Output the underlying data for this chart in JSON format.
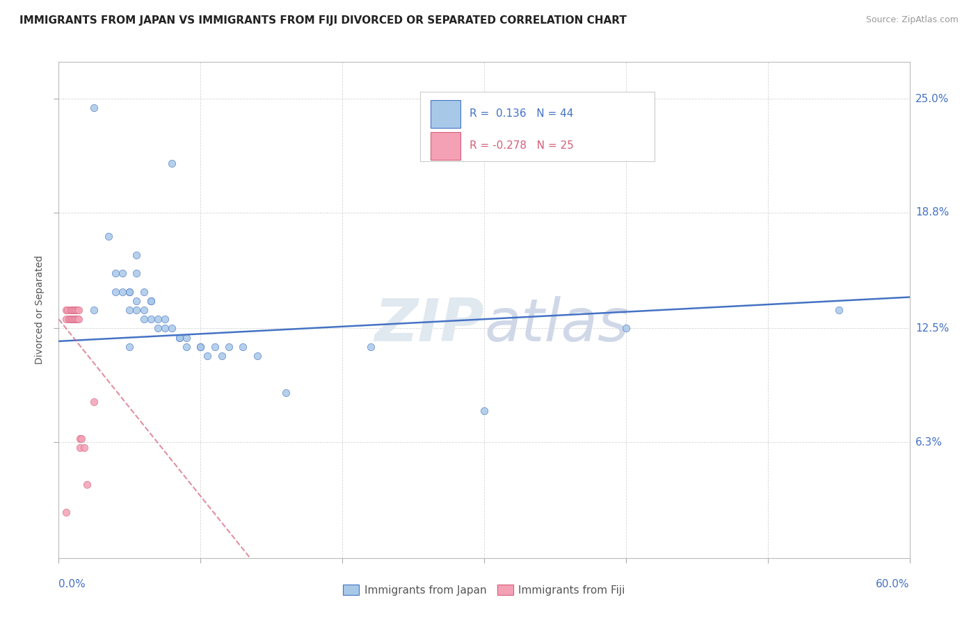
{
  "title": "IMMIGRANTS FROM JAPAN VS IMMIGRANTS FROM FIJI DIVORCED OR SEPARATED CORRELATION CHART",
  "source": "Source: ZipAtlas.com",
  "ylabel": "Divorced or Separated",
  "yticks": [
    "6.3%",
    "12.5%",
    "18.8%",
    "25.0%"
  ],
  "ytick_vals": [
    0.063,
    0.125,
    0.188,
    0.25
  ],
  "xmin": 0.0,
  "xmax": 0.6,
  "ymin": 0.0,
  "ymax": 0.27,
  "legend1_r": "0.136",
  "legend1_n": "44",
  "legend2_r": "-0.278",
  "legend2_n": "25",
  "color_japan": "#A8C8E8",
  "color_fiji": "#F4A0B5",
  "color_japan_line": "#4472C4",
  "color_fiji_line": "#D4607A",
  "japan_x": [
    0.025,
    0.08,
    0.035,
    0.055,
    0.04,
    0.045,
    0.05,
    0.04,
    0.045,
    0.055,
    0.05,
    0.06,
    0.055,
    0.065,
    0.065,
    0.06,
    0.055,
    0.05,
    0.06,
    0.065,
    0.07,
    0.075,
    0.07,
    0.075,
    0.08,
    0.085,
    0.09,
    0.085,
    0.09,
    0.1,
    0.1,
    0.105,
    0.11,
    0.115,
    0.12,
    0.13,
    0.14,
    0.16,
    0.22,
    0.3,
    0.4,
    0.55,
    0.025,
    0.05
  ],
  "japan_y": [
    0.245,
    0.215,
    0.175,
    0.165,
    0.155,
    0.155,
    0.145,
    0.145,
    0.145,
    0.155,
    0.145,
    0.145,
    0.14,
    0.14,
    0.14,
    0.135,
    0.135,
    0.135,
    0.13,
    0.13,
    0.13,
    0.13,
    0.125,
    0.125,
    0.125,
    0.12,
    0.12,
    0.12,
    0.115,
    0.115,
    0.115,
    0.11,
    0.115,
    0.11,
    0.115,
    0.115,
    0.11,
    0.09,
    0.115,
    0.08,
    0.125,
    0.135,
    0.135,
    0.115
  ],
  "fiji_x": [
    0.005,
    0.005,
    0.006,
    0.007,
    0.008,
    0.008,
    0.009,
    0.009,
    0.01,
    0.01,
    0.011,
    0.011,
    0.012,
    0.012,
    0.013,
    0.013,
    0.014,
    0.014,
    0.015,
    0.015,
    0.016,
    0.018,
    0.02,
    0.025,
    0.005
  ],
  "fiji_y": [
    0.135,
    0.13,
    0.135,
    0.13,
    0.135,
    0.13,
    0.135,
    0.13,
    0.135,
    0.13,
    0.135,
    0.13,
    0.135,
    0.13,
    0.135,
    0.13,
    0.135,
    0.13,
    0.06,
    0.065,
    0.065,
    0.06,
    0.04,
    0.085,
    0.025
  ]
}
